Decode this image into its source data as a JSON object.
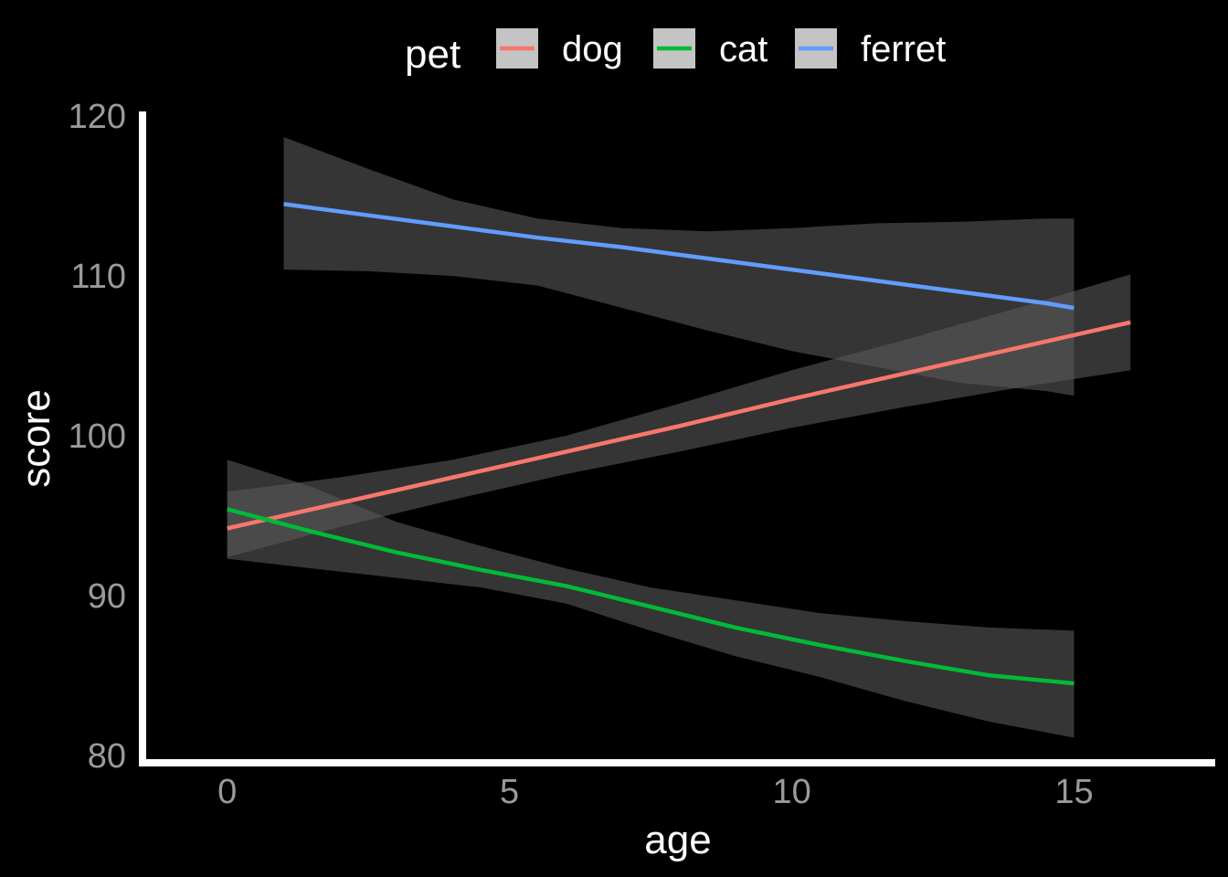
{
  "chart_data": {
    "type": "line",
    "title": "",
    "xlabel": "age",
    "ylabel": "score",
    "xlim": [
      -1.5,
      17.5
    ],
    "ylim": [
      79.3,
      120.3
    ],
    "x_ticks": [
      0,
      5,
      10,
      15
    ],
    "x_tick_labels": [
      "0",
      "5",
      "10",
      "15"
    ],
    "y_ticks": [
      80,
      90,
      100,
      110,
      120
    ],
    "y_tick_labels": [
      "80",
      "90",
      "100",
      "110",
      "120"
    ],
    "grid": false,
    "legend": {
      "title": "pet",
      "position": "top"
    },
    "ribbon_color": "#595959",
    "series": [
      {
        "name": "dog",
        "color": "#F8766D",
        "x": [
          0,
          2,
          4,
          6,
          8,
          10,
          12,
          14,
          16
        ],
        "y": [
          94.2,
          95.8,
          97.4,
          99.0,
          100.6,
          102.3,
          103.9,
          105.5,
          107.1
        ],
        "lower": [
          92.4,
          94.3,
          96.0,
          97.6,
          99.0,
          100.5,
          101.8,
          103.0,
          104.1
        ],
        "upper": [
          96.5,
          97.4,
          98.5,
          100.0,
          102.0,
          104.1,
          106.0,
          108.0,
          110.1
        ]
      },
      {
        "name": "cat",
        "color": "#00BA38",
        "x": [
          0,
          1.5,
          3,
          4.5,
          6,
          7.5,
          9,
          10.5,
          12,
          13.5,
          15
        ],
        "y": [
          95.4,
          94.0,
          92.7,
          91.6,
          90.6,
          89.3,
          88.0,
          86.9,
          85.9,
          85.0,
          84.5
        ],
        "lower": [
          92.3,
          91.7,
          91.1,
          90.5,
          89.5,
          87.8,
          86.2,
          84.9,
          83.4,
          82.1,
          81.1
        ],
        "upper": [
          98.5,
          96.8,
          94.6,
          93.1,
          91.7,
          90.5,
          89.7,
          88.9,
          88.4,
          88.0,
          87.8
        ]
      },
      {
        "name": "ferret",
        "color": "#619CFF",
        "x": [
          1,
          2.5,
          4,
          5.5,
          7,
          8.5,
          10,
          11.5,
          13,
          14.5,
          15
        ],
        "y": [
          114.5,
          113.8,
          113.1,
          112.4,
          111.8,
          111.1,
          110.4,
          109.7,
          109.0,
          108.3,
          108.0
        ],
        "lower": [
          110.4,
          110.3,
          110.0,
          109.4,
          108.0,
          106.6,
          105.3,
          104.3,
          103.3,
          102.8,
          102.5
        ],
        "upper": [
          118.7,
          116.7,
          114.8,
          113.6,
          113.0,
          112.8,
          113.0,
          113.3,
          113.4,
          113.6,
          113.6
        ]
      }
    ]
  }
}
